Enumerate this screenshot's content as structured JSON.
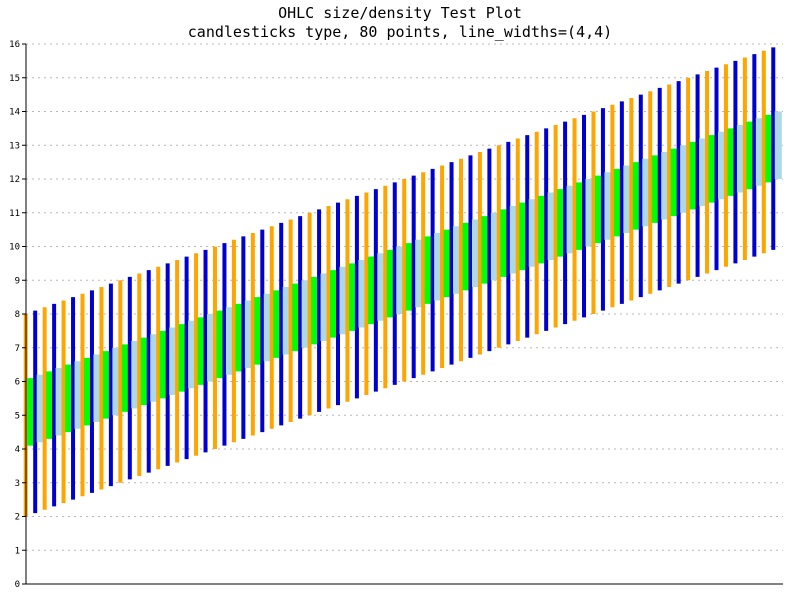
{
  "chart_data": {
    "type": "ohlc-candlestick",
    "title": "OHLC size/density Test Plot",
    "subtitle": "candlesticks type, 80 points, line_widths=(4,4)",
    "xlabel": "",
    "ylabel": "",
    "ylim": [
      0,
      16
    ],
    "yticks": [
      "0",
      "1",
      "2",
      "3",
      "4",
      "5",
      "6",
      "7",
      "8",
      "9",
      "10",
      "11",
      "12",
      "13",
      "14",
      "15",
      "16"
    ],
    "grid": "horizontal-dotted",
    "legend": "none",
    "n_points": 80,
    "generator": {
      "low_start": 2.0,
      "open_start": 4.1,
      "close_start": 6.1,
      "high_start": 8.0,
      "step": 0.1,
      "bullish_every": 2
    },
    "colors": {
      "wick_a": "#ffa500",
      "wick_b": "#0000d0",
      "body_up": "#00ff00",
      "body_down": "#add8e6",
      "grid": "#b8b8b8",
      "axis": "#000000"
    }
  }
}
